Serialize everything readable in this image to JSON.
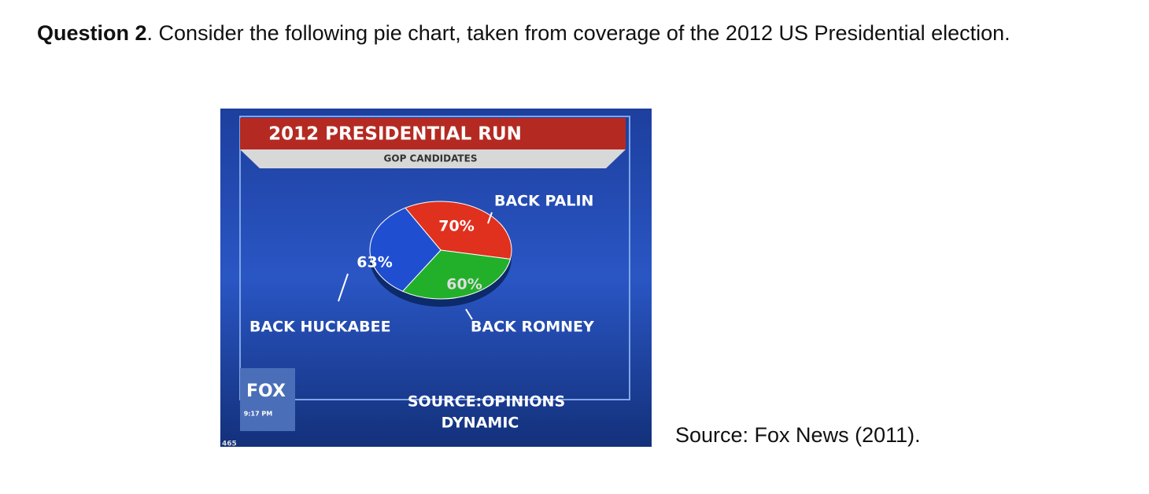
{
  "question": {
    "label": "Question 2",
    "text": ". Consider the following pie chart, taken from coverage of the 2012 US Presidential election."
  },
  "source": "Source: Fox News (2011).",
  "chart_data": {
    "type": "pie",
    "title": "2012 PRESIDENTIAL RUN",
    "subtitle": "GOP CANDIDATES",
    "categories": [
      "BACK PALIN",
      "BACK ROMNEY",
      "BACK HUCKABEE"
    ],
    "values": [
      70,
      60,
      63
    ],
    "value_labels": [
      "70%",
      "60%",
      "63%"
    ],
    "colors": [
      "#e0301e",
      "#22b02a",
      "#1f4fd0"
    ],
    "annotations": [
      "SOURCE:OPINIONS",
      "DYNAMIC"
    ]
  },
  "overlay": {
    "logo": "FOX",
    "time": "9:17 PM",
    "corner": "465"
  }
}
